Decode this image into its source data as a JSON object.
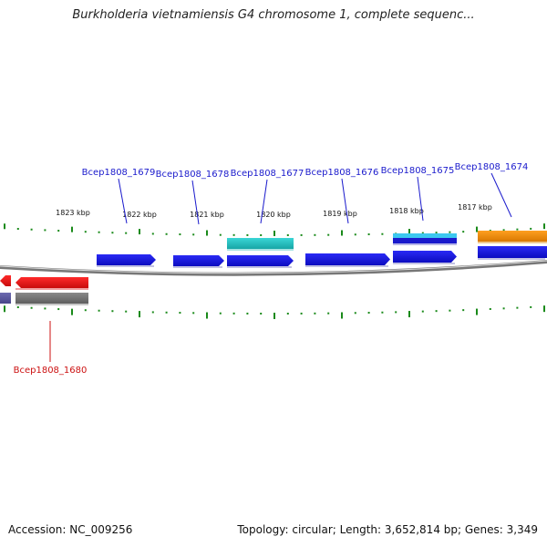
{
  "title": "Burkholderia vietnamiensis G4 chromosome 1, complete sequenc...",
  "footer": {
    "accession": "Accession: NC_009256",
    "summary": "Topology: circular; Length: 3,652,814 bp; Genes: 3,349"
  },
  "colors": {
    "backbone": "#777777",
    "tick": "#1a8a1a",
    "forward_gene": "#1414e6",
    "reverse_gene": "#e81010",
    "gene_label": "#1a1acc",
    "reverse_label": "#cc1111",
    "rna": "#1ec2c2",
    "orange": "#f08c00",
    "grey": "#777777",
    "purple": "#5a58a0",
    "light_blue": "#3cc8f0"
  },
  "scale": {
    "unit": "kbp",
    "labels": [
      "1823 kbp",
      "1822 kbp",
      "1821 kbp",
      "1820 kbp",
      "1819 kbp",
      "1818 kbp",
      "1817 kbp"
    ]
  },
  "gene_labels": [
    {
      "text": "Bcep1808_1679",
      "color_key": "gene_label"
    },
    {
      "text": "Bcep1808_1678",
      "color_key": "gene_label"
    },
    {
      "text": "Bcep1808_1677",
      "color_key": "gene_label"
    },
    {
      "text": "Bcep1808_1676",
      "color_key": "gene_label"
    },
    {
      "text": "Bcep1808_1675",
      "color_key": "gene_label"
    },
    {
      "text": "Bcep1808_1674",
      "color_key": "gene_label"
    },
    {
      "text": "Bcep1808_1680",
      "color_key": "reverse_label"
    }
  ]
}
